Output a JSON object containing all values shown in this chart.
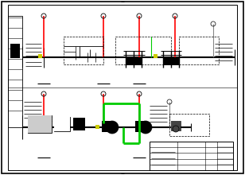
{
  "bg": "#ffffff",
  "black": "#000000",
  "red": "#ff0000",
  "green": "#00cc00",
  "grey": "#888888",
  "yellow": "#cccc00",
  "darkgrey": "#444444"
}
